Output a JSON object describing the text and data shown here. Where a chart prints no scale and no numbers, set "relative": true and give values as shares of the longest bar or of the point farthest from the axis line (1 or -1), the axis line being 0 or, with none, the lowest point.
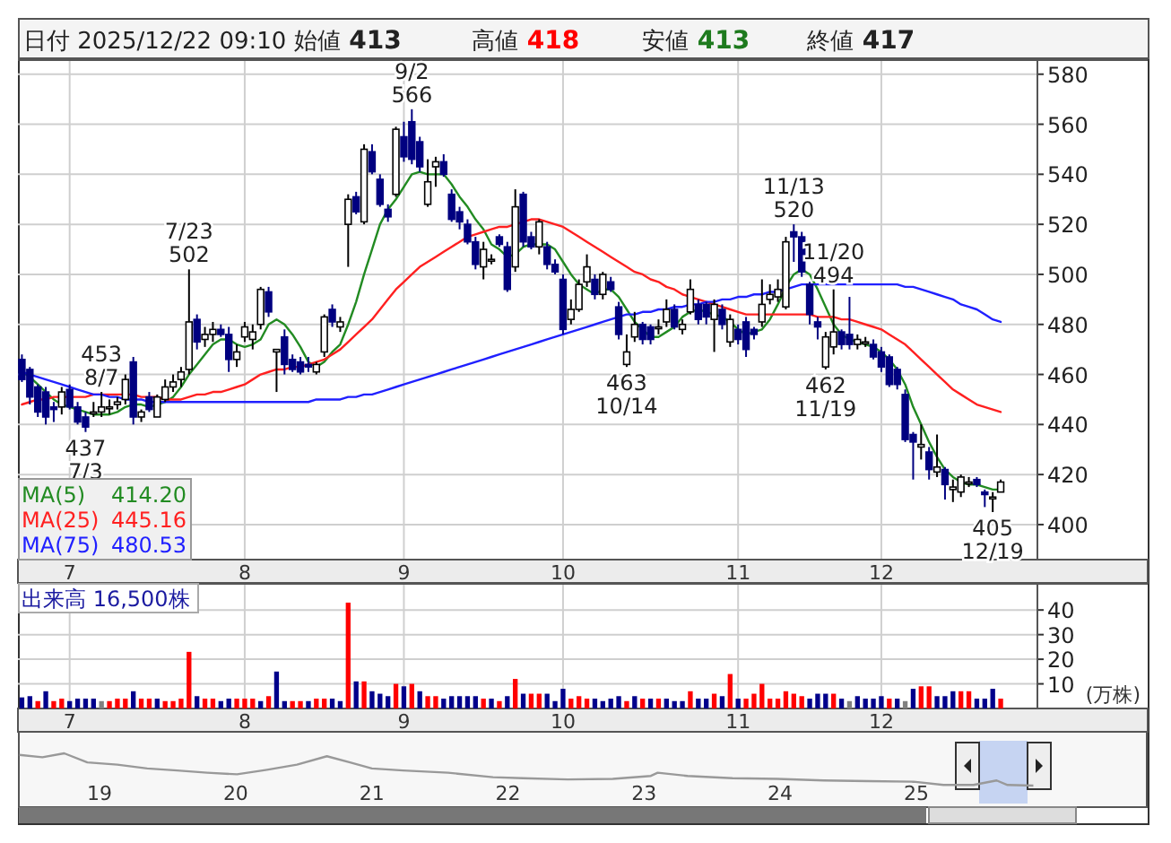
{
  "chart_data": [
    {
      "type": "candlestick",
      "title": "日付 2025/12/22 09:10 始値 413 高値 418 安値 413 終値 417",
      "categories": [
        null,
        null,
        null,
        null,
        null,
        null,
        "7",
        null,
        null,
        null,
        null,
        null,
        null,
        null,
        null,
        null,
        null,
        null,
        null,
        null,
        null,
        null,
        null,
        null,
        null,
        null,
        null,
        null,
        "8",
        null,
        null,
        null,
        null,
        null,
        null,
        null,
        null,
        null,
        null,
        null,
        null,
        null,
        null,
        null,
        null,
        null,
        null,
        null,
        "9",
        null,
        null,
        null,
        null,
        null,
        null,
        null,
        null,
        null,
        null,
        null,
        null,
        null,
        null,
        null,
        null,
        null,
        null,
        null,
        "10",
        null,
        null,
        null,
        null,
        null,
        null,
        null,
        null,
        null,
        null,
        null,
        null,
        null,
        null,
        null,
        null,
        null,
        null,
        null,
        null,
        null,
        "11",
        null,
        null,
        null,
        null,
        null,
        null,
        null,
        null,
        null,
        null,
        null,
        null,
        null,
        null,
        null,
        null,
        null,
        "12",
        null,
        null,
        null,
        null,
        null,
        null,
        null,
        null,
        null,
        null,
        null,
        null,
        null,
        null,
        null
      ],
      "ohlc": [
        [
          466,
          468,
          457,
          458
        ],
        [
          462,
          463,
          448,
          451
        ],
        [
          455,
          456,
          443,
          445
        ],
        [
          453,
          455,
          440,
          443
        ],
        [
          447,
          449,
          441,
          446
        ],
        [
          447,
          455,
          444,
          453
        ],
        [
          454,
          456,
          446,
          447
        ],
        [
          447,
          449,
          440,
          441
        ],
        [
          443,
          445,
          437,
          439
        ],
        [
          445,
          449,
          443,
          445
        ],
        [
          445,
          453,
          443,
          447
        ],
        [
          447,
          450,
          444,
          447
        ],
        [
          448,
          451,
          446,
          449
        ],
        [
          450,
          460,
          448,
          458
        ],
        [
          465,
          467,
          440,
          443
        ],
        [
          443,
          446,
          441,
          445
        ],
        [
          451,
          453,
          445,
          446
        ],
        [
          443,
          452,
          443,
          451
        ],
        [
          450,
          458,
          449,
          455
        ],
        [
          455,
          460,
          453,
          457
        ],
        [
          458,
          463,
          455,
          461
        ],
        [
          462,
          502,
          460,
          481
        ],
        [
          482,
          484,
          470,
          473
        ],
        [
          474,
          479,
          471,
          476
        ],
        [
          476,
          481,
          473,
          478
        ],
        [
          478,
          480,
          475,
          476
        ],
        [
          476,
          479,
          461,
          466
        ],
        [
          466,
          472,
          463,
          469
        ],
        [
          475,
          481,
          473,
          479
        ],
        [
          474,
          480,
          470,
          477
        ],
        [
          480,
          495,
          478,
          494
        ],
        [
          493,
          495,
          483,
          485
        ],
        [
          469,
          470,
          453,
          470
        ],
        [
          475,
          478,
          460,
          464
        ],
        [
          466,
          468,
          461,
          462
        ],
        [
          465,
          467,
          460,
          461
        ],
        [
          464,
          467,
          461,
          463
        ],
        [
          461,
          465,
          460,
          464
        ],
        [
          469,
          484,
          467,
          483
        ],
        [
          486,
          488,
          479,
          481
        ],
        [
          479,
          483,
          477,
          481
        ],
        [
          520,
          532,
          503,
          530
        ],
        [
          531,
          533,
          524,
          525
        ],
        [
          521,
          552,
          520,
          550
        ],
        [
          549,
          552,
          540,
          541
        ],
        [
          538,
          540,
          527,
          528
        ],
        [
          526,
          528,
          521,
          523
        ],
        [
          532,
          559,
          531,
          558
        ],
        [
          555,
          561,
          545,
          547
        ],
        [
          561,
          566,
          544,
          546
        ],
        [
          553,
          555,
          541,
          543
        ],
        [
          528,
          546,
          527,
          537
        ],
        [
          543,
          547,
          535,
          545
        ],
        [
          545,
          548,
          539,
          540
        ],
        [
          532,
          534,
          521,
          522
        ],
        [
          525,
          527,
          518,
          521
        ],
        [
          520,
          522,
          512,
          513
        ],
        [
          513,
          515,
          502,
          504
        ],
        [
          503,
          513,
          498,
          510
        ],
        [
          506,
          508,
          504,
          506
        ],
        [
          515,
          516,
          511,
          512
        ],
        [
          511,
          513,
          493,
          494
        ],
        [
          503,
          534,
          501,
          527
        ],
        [
          532,
          533,
          511,
          513
        ],
        [
          515,
          517,
          510,
          511
        ],
        [
          511,
          522,
          508,
          521
        ],
        [
          511,
          513,
          502,
          504
        ],
        [
          504,
          506,
          500,
          501
        ],
        [
          498,
          500,
          476,
          478
        ],
        [
          482,
          490,
          480,
          486
        ],
        [
          486,
          498,
          485,
          496
        ],
        [
          497,
          508,
          495,
          503
        ],
        [
          498,
          500,
          490,
          492
        ],
        [
          492,
          501,
          490,
          500
        ],
        [
          497,
          499,
          493,
          494
        ],
        [
          487,
          489,
          474,
          476
        ],
        [
          464,
          476,
          463,
          469
        ],
        [
          475,
          485,
          473,
          480
        ],
        [
          480,
          481,
          472,
          474
        ],
        [
          479,
          480,
          472,
          474
        ],
        [
          479,
          482,
          476,
          479
        ],
        [
          481,
          490,
          479,
          486
        ],
        [
          486,
          488,
          478,
          479
        ],
        [
          478,
          482,
          476,
          480
        ],
        [
          485,
          498,
          484,
          494
        ],
        [
          488,
          490,
          480,
          482
        ],
        [
          488,
          489,
          480,
          483
        ],
        [
          482,
          490,
          469,
          488
        ],
        [
          486,
          488,
          478,
          480
        ],
        [
          473,
          484,
          471,
          482
        ],
        [
          478,
          480,
          472,
          474
        ],
        [
          481,
          483,
          467,
          470
        ],
        [
          478,
          479,
          474,
          476
        ],
        [
          481,
          498,
          479,
          488
        ],
        [
          490,
          496,
          488,
          492
        ],
        [
          491,
          498,
          489,
          494
        ],
        [
          487,
          515,
          486,
          513
        ],
        [
          517,
          520,
          505,
          515
        ],
        [
          515,
          517,
          499,
          501
        ],
        [
          496,
          497,
          480,
          484
        ],
        [
          481,
          483,
          474,
          479
        ],
        [
          463,
          477,
          462,
          475
        ],
        [
          471,
          494,
          468,
          477
        ],
        [
          477,
          478,
          470,
          472
        ],
        [
          476,
          491,
          470,
          472
        ],
        [
          472,
          476,
          470,
          474
        ],
        [
          473,
          475,
          471,
          473
        ],
        [
          472,
          474,
          466,
          467
        ],
        [
          469,
          471,
          461,
          463
        ],
        [
          467,
          468,
          455,
          456
        ],
        [
          462,
          463,
          454,
          456
        ],
        [
          452,
          454,
          433,
          434
        ],
        [
          436,
          437,
          418,
          433
        ],
        [
          431,
          440,
          426,
          432
        ],
        [
          429,
          431,
          418,
          422
        ],
        [
          421,
          436,
          419,
          423
        ],
        [
          422,
          423,
          410,
          416
        ],
        [
          414,
          418,
          409,
          415
        ],
        [
          413,
          420,
          411,
          419
        ],
        [
          417,
          419,
          415,
          417
        ],
        [
          418,
          419,
          415,
          416
        ],
        [
          413,
          414,
          407,
          412
        ],
        [
          411,
          413,
          405,
          411
        ],
        [
          413,
          418,
          413,
          417
        ]
      ],
      "series": [
        {
          "name": "MA(5)",
          "type": "line",
          "color": "#228b22",
          "values": [
            461,
            459,
            456,
            453,
            450,
            448,
            447,
            446,
            445,
            444,
            444,
            444,
            445,
            447,
            448,
            448,
            447,
            448,
            449,
            451,
            455,
            460,
            464,
            468,
            472,
            474,
            474,
            472,
            471,
            472,
            474,
            480,
            482,
            480,
            476,
            471,
            465,
            463,
            465,
            469,
            472,
            480,
            489,
            500,
            510,
            520,
            526,
            530,
            535,
            540,
            541,
            540,
            540,
            540,
            536,
            531,
            527,
            522,
            518,
            512,
            510,
            507,
            508,
            511,
            512,
            512,
            512,
            510,
            505,
            500,
            496,
            494,
            492,
            494,
            494,
            491,
            486,
            481,
            478,
            475,
            475,
            477,
            479,
            483,
            485,
            486,
            485,
            484,
            483,
            481,
            478,
            476,
            477,
            478,
            482,
            488,
            495,
            500,
            502,
            500,
            494,
            487,
            480,
            476,
            474,
            473,
            472,
            471,
            469,
            466,
            462,
            456,
            447,
            440,
            433,
            427,
            422,
            419,
            417,
            416,
            416,
            415,
            414,
            414
          ]
        },
        {
          "name": "MA(25)",
          "type": "line",
          "color": "#ff2020",
          "values": [
            448,
            449,
            450,
            450,
            451,
            451,
            451,
            451,
            451,
            452,
            452,
            452,
            452,
            452,
            452,
            451,
            451,
            451,
            450,
            450,
            450,
            451,
            452,
            452,
            453,
            453,
            454,
            455,
            456,
            458,
            460,
            461,
            462,
            462,
            463,
            463,
            464,
            465,
            466,
            468,
            470,
            473,
            476,
            479,
            482,
            486,
            490,
            494,
            497,
            500,
            503,
            505,
            507,
            509,
            511,
            513,
            515,
            516,
            517,
            518,
            519,
            519,
            520,
            521,
            522,
            522,
            521,
            520,
            519,
            517,
            515,
            513,
            511,
            509,
            507,
            505,
            503,
            501,
            500,
            498,
            497,
            495,
            494,
            492,
            491,
            490,
            489,
            488,
            487,
            486,
            485,
            484,
            484,
            484,
            484,
            484,
            484,
            484,
            484,
            484,
            483,
            483,
            483,
            482,
            482,
            481,
            480,
            479,
            478,
            476,
            474,
            472,
            469,
            466,
            463,
            460,
            457,
            454,
            452,
            450,
            448,
            447,
            446,
            445
          ]
        },
        {
          "name": "MA(75)",
          "type": "line",
          "color": "#2020ff",
          "values": [
            461,
            460,
            459,
            458,
            457,
            456,
            455,
            454,
            453,
            452,
            452,
            451,
            451,
            450,
            450,
            450,
            449,
            449,
            449,
            449,
            449,
            449,
            449,
            449,
            449,
            449,
            449,
            449,
            449,
            449,
            449,
            449,
            449,
            449,
            449,
            449,
            449,
            450,
            450,
            450,
            450,
            451,
            451,
            452,
            452,
            453,
            454,
            455,
            456,
            457,
            458,
            459,
            460,
            461,
            462,
            463,
            464,
            465,
            466,
            467,
            468,
            469,
            470,
            471,
            472,
            473,
            474,
            475,
            476,
            477,
            478,
            479,
            480,
            481,
            482,
            483,
            484,
            484,
            485,
            485,
            486,
            486,
            487,
            487,
            488,
            488,
            489,
            489,
            490,
            490,
            491,
            491,
            492,
            492,
            493,
            493,
            494,
            495,
            496,
            496,
            496,
            496,
            496,
            496,
            496,
            496,
            496,
            496,
            496,
            496,
            496,
            495,
            495,
            494,
            493,
            492,
            491,
            490,
            488,
            487,
            486,
            484,
            482,
            481
          ]
        }
      ],
      "annotations": [
        "414.20",
        "445.16",
        "480.53",
        {
          "text": "437\n7/3",
          "y": 437
        },
        {
          "text": "7/23\n502",
          "y": 502
        },
        {
          "text": "453\n8/7",
          "y": 453
        },
        {
          "text": "9/2\n566",
          "y": 566
        },
        {
          "text": "463\n10/14",
          "y": 463
        },
        {
          "text": "11/13\n520",
          "y": 520
        },
        {
          "text": "11/20\n494",
          "y": 494
        },
        {
          "text": "462\n11/19",
          "y": 462
        },
        {
          "text": "405\n12/19",
          "y": 405
        }
      ],
      "ylim": [
        386,
        586
      ],
      "yticks": [
        400,
        420,
        440,
        460,
        480,
        500,
        520,
        540,
        560,
        580
      ],
      "grid": true,
      "legend": "bottom left"
    },
    {
      "type": "bar",
      "title": "出来高  16,500株",
      "ylabel": "(万株)",
      "categories": [
        null,
        null,
        null,
        null,
        null,
        null,
        "7",
        null,
        null,
        null,
        null,
        null,
        null,
        null,
        null,
        null,
        null,
        null,
        null,
        null,
        null,
        null,
        null,
        null,
        null,
        null,
        null,
        null,
        "8",
        null,
        null,
        null,
        null,
        null,
        null,
        null,
        null,
        null,
        null,
        null,
        null,
        null,
        null,
        null,
        null,
        null,
        null,
        null,
        "9",
        null,
        null,
        null,
        null,
        null,
        null,
        null,
        null,
        null,
        null,
        null,
        null,
        null,
        null,
        null,
        null,
        null,
        null,
        null,
        "10",
        null,
        null,
        null,
        null,
        null,
        null,
        null,
        null,
        null,
        null,
        null,
        null,
        null,
        null,
        null,
        null,
        null,
        null,
        null,
        null,
        null,
        "11",
        null,
        null,
        null,
        null,
        null,
        null,
        null,
        null,
        null,
        null,
        null,
        null,
        null,
        null,
        null,
        null,
        null,
        "12",
        null,
        null,
        null,
        null,
        null,
        null,
        null,
        null,
        null,
        null,
        null,
        null,
        null,
        null,
        null
      ],
      "values": [
        4.5,
        5,
        3,
        7,
        3,
        4,
        3,
        4,
        4,
        4,
        3,
        3,
        4,
        4,
        7,
        4,
        4,
        4,
        3,
        3,
        4,
        23,
        5,
        4,
        4,
        3,
        4,
        4,
        4,
        4,
        3,
        5,
        15,
        3,
        3,
        3,
        3,
        4,
        4,
        4,
        3,
        43,
        11,
        11,
        7,
        6,
        5,
        10,
        9,
        10,
        7,
        5,
        5,
        4,
        5,
        5,
        5,
        5,
        4,
        4,
        3,
        5,
        12,
        6,
        6,
        6,
        6,
        3,
        8,
        4,
        5,
        4,
        4,
        3,
        4,
        5,
        3,
        5,
        4,
        4,
        4,
        4,
        3,
        3,
        7,
        4,
        4,
        6,
        5,
        14,
        4,
        4,
        6,
        10,
        4,
        4,
        7,
        6,
        5,
        4,
        6,
        6,
        6,
        4,
        3,
        5,
        4,
        4,
        5,
        4,
        4,
        3,
        8,
        9,
        9,
        5,
        5,
        7,
        7,
        7,
        4,
        4,
        8,
        4
      ],
      "colors": [
        "#00008b",
        "#00008b",
        "#ff0000",
        "#00008b",
        "#ff0000",
        "#ff0000",
        "#00008b",
        "#00008b",
        "#00008b",
        "#00008b",
        "#808080",
        "#ff0000",
        "#ff0000",
        "#ff0000",
        "#00008b",
        "#ff0000",
        "#ff0000",
        "#00008b",
        "#ff0000",
        "#ff0000",
        "#ff0000",
        "#ff0000",
        "#00008b",
        "#ff0000",
        "#ff0000",
        "#00008b",
        "#00008b",
        "#ff0000",
        "#ff0000",
        "#ff0000",
        "#00008b",
        "#ff0000",
        "#00008b",
        "#00008b",
        "#ff0000",
        "#ff0000",
        "#00008b",
        "#ff0000",
        "#ff0000",
        "#00008b",
        "#00008b",
        "#ff0000",
        "#00008b",
        "#ff0000",
        "#00008b",
        "#00008b",
        "#00008b",
        "#ff0000",
        "#00008b",
        "#ff0000",
        "#00008b",
        "#ff0000",
        "#ff0000",
        "#00008b",
        "#00008b",
        "#00008b",
        "#00008b",
        "#00008b",
        "#ff0000",
        "#00008b",
        "#ff0000",
        "#00008b",
        "#ff0000",
        "#00008b",
        "#ff0000",
        "#ff0000",
        "#00008b",
        "#00008b",
        "#00008b",
        "#ff0000",
        "#ff0000",
        "#ff0000",
        "#00008b",
        "#00008b",
        "#00008b",
        "#00008b",
        "#ff0000",
        "#00008b",
        "#ff0000",
        "#00008b",
        "#ff0000",
        "#00008b",
        "#00008b",
        "#00008b",
        "#ff0000",
        "#00008b",
        "#00008b",
        "#ff0000",
        "#00008b",
        "#ff0000",
        "#00008b",
        "#ff0000",
        "#ff0000",
        "#ff0000",
        "#ff0000",
        "#ff0000",
        "#ff0000",
        "#ff0000",
        "#ff0000",
        "#00008b",
        "#00008b",
        "#00008b",
        "#ff0000",
        "#00008b",
        "#808080",
        "#00008b",
        "#00008b",
        "#00008b",
        "#00008b",
        "#ff0000",
        "#00008b",
        "#808080",
        "#00008b",
        "#ff0000",
        "#ff0000",
        "#00008b",
        "#00008b",
        "#00008b",
        "#ff0000",
        "#ff0000",
        "#00008b",
        "#00008b",
        "#00008b",
        "#ff0000"
      ],
      "ylim": [
        0,
        51
      ],
      "yticks": [
        10,
        20,
        30,
        40
      ],
      "grid": true
    },
    {
      "type": "line",
      "relative": true,
      "xlim": [
        18.4,
        26.7
      ],
      "xticks": [
        19,
        20,
        21,
        22,
        23,
        24,
        25
      ],
      "tick_labels": "x",
      "series": [
        {
          "color": "#999999",
          "x": [
            18.41,
            18.58,
            18.74,
            18.91,
            19.13,
            19.35,
            19.57,
            19.79,
            20.01,
            20.23,
            20.45,
            20.67,
            20.84,
            21.0,
            21.23,
            21.56,
            21.89,
            22.11,
            22.44,
            22.77,
            23.05,
            23.1,
            23.32,
            23.65,
            23.98,
            24.32,
            24.65,
            24.98,
            25.2,
            25.42,
            25.59,
            25.67,
            25.86
          ],
          "values": [
            0.95,
            0.88,
            1,
            0.72,
            0.65,
            0.53,
            0.47,
            0.4,
            0.35,
            0.49,
            0.65,
            0.91,
            0.72,
            0.53,
            0.47,
            0.4,
            0.26,
            0.23,
            0.19,
            0.21,
            0.3,
            0.4,
            0.3,
            0.23,
            0.21,
            0.16,
            0.14,
            0.12,
            0.02,
            0.02,
            0.16,
            0.02,
            0
          ]
        }
      ]
    }
  ]
}
